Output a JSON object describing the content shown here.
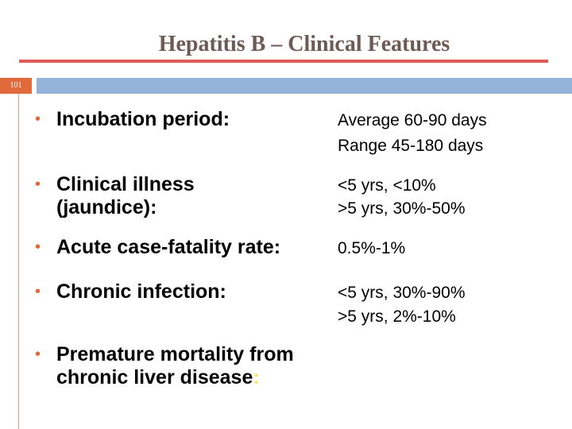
{
  "slide": {
    "title": "Hepatitis B – Clinical Features",
    "page_number": "101"
  },
  "rows": [
    {
      "label_lines": [
        "Incubation period:"
      ],
      "values": [
        "Average 60-90 days",
        "Range 45-180 days"
      ]
    },
    {
      "label_lines": [
        "Clinical illness",
        "(jaundice):"
      ],
      "values": [
        "<5 yrs, <10%",
        ">5 yrs, 30%-50%"
      ]
    },
    {
      "label_lines": [
        "Acute case-fatality rate:"
      ],
      "values": [
        "0.5%-1%"
      ]
    },
    {
      "label_lines": [
        "Chronic infection:"
      ],
      "values": [
        "<5 yrs, 30%-90%",
        ">5 yrs, 2%-10%"
      ]
    },
    {
      "label_lines": [
        "Premature mortality from",
        "chronic liver disease"
      ],
      "label_suffix": ":",
      "values": []
    }
  ],
  "colors": {
    "title": "#6e5a55",
    "title_rule": "#e05a5a",
    "page_badge": "#e16a3d",
    "header_bar": "#93b4d8",
    "bullet": "#e16a3d",
    "highlight_colon": "#f5e65a"
  }
}
